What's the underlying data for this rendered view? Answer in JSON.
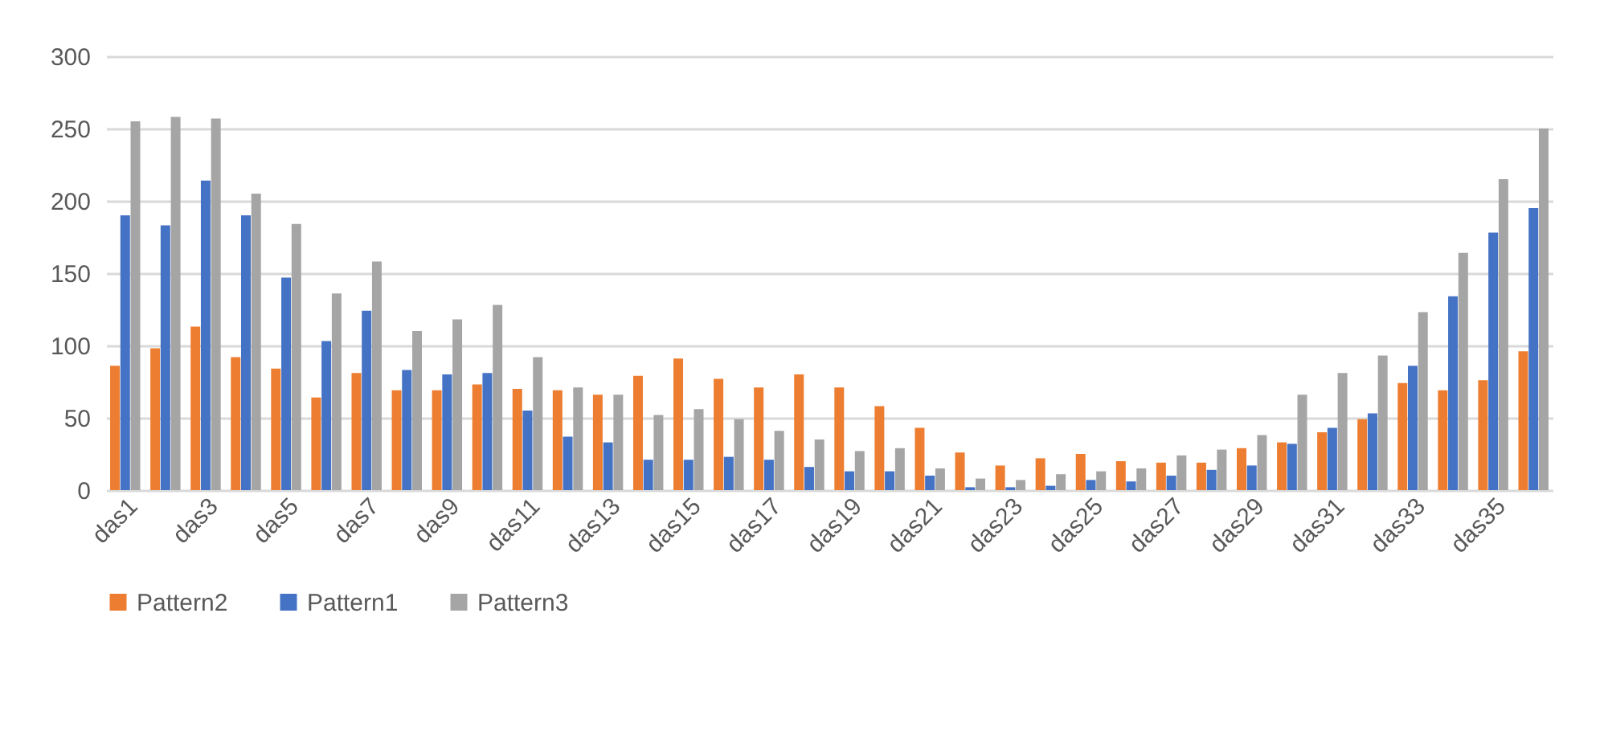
{
  "chart_data": {
    "type": "bar",
    "categories": [
      "das1",
      null,
      "das3",
      null,
      "das5",
      null,
      "das7",
      null,
      "das9",
      null,
      "das11",
      null,
      "das13",
      null,
      "das15",
      null,
      "das17",
      null,
      "das19",
      null,
      "das21",
      null,
      "das23",
      null,
      "das25",
      null,
      "das27",
      null,
      "das29",
      null,
      "das31",
      null,
      "das33",
      null,
      "das35",
      null
    ],
    "series": [
      {
        "name": "Pattern2",
        "color": "#ed7d31",
        "values": [
          86,
          98,
          113,
          92,
          84,
          64,
          81,
          69,
          69,
          73,
          70,
          69,
          66,
          79,
          91,
          77,
          71,
          80,
          71,
          58,
          43,
          26,
          17,
          22,
          25,
          20,
          19,
          19,
          29,
          33,
          40,
          49,
          74,
          69,
          76,
          96
        ]
      },
      {
        "name": "Pattern1",
        "color": "#4472c4",
        "values": [
          190,
          183,
          214,
          190,
          147,
          103,
          124,
          83,
          80,
          81,
          55,
          37,
          33,
          21,
          21,
          23,
          21,
          16,
          13,
          13,
          10,
          2,
          2,
          3,
          7,
          6,
          10,
          14,
          17,
          32,
          43,
          53,
          86,
          134,
          178,
          195
        ]
      },
      {
        "name": "Pattern3",
        "color": "#a5a5a5",
        "values": [
          255,
          258,
          257,
          205,
          184,
          136,
          158,
          110,
          118,
          128,
          92,
          71,
          66,
          52,
          56,
          49,
          41,
          35,
          27,
          29,
          15,
          8,
          7,
          11,
          13,
          15,
          24,
          28,
          38,
          66,
          81,
          93,
          123,
          164,
          215,
          250
        ]
      }
    ],
    "ylim": [
      0,
      300
    ],
    "yticks": [
      0,
      50,
      100,
      150,
      200,
      250,
      300
    ],
    "grid": "y",
    "legend": "bottom"
  }
}
